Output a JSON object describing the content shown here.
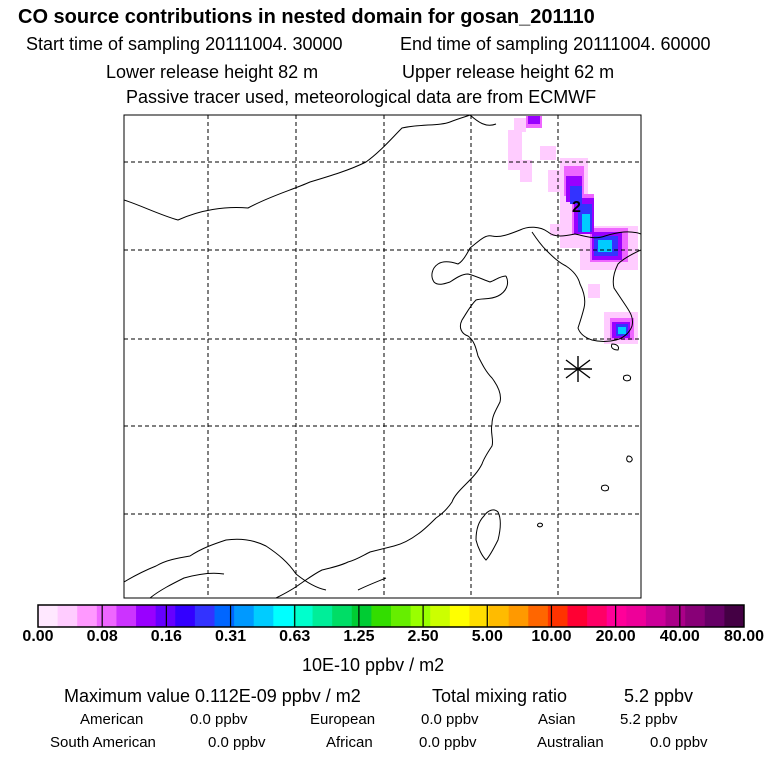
{
  "title": "CO  source contributions in nested domain for gosan_201110",
  "sampling": {
    "start": "Start time of sampling 20111004. 30000",
    "end": "End time of sampling 20111004. 60000"
  },
  "release": {
    "lower": "Lower release height   82 m",
    "upper": "Upper release height   62 m"
  },
  "tracer_note": "Passive tracer used, meteorological data are from ECMWF",
  "map": {
    "contour_label": "2",
    "receptor_marker": "asterisk-marker"
  },
  "colorbar": {
    "unit_label": "10E-10 ppbv / m2",
    "tick_labels": [
      "0.00",
      "0.08",
      "0.16",
      "0.31",
      "0.63",
      "1.25",
      "2.50",
      "5.00",
      "10.00",
      "20.00",
      "40.00",
      "80.00"
    ],
    "colors": [
      "#ffe8ff",
      "#ffccff",
      "#ff99ff",
      "#ee66ff",
      "#cc33ff",
      "#9900ff",
      "#6600ff",
      "#3300ff",
      "#3333ff",
      "#0066ff",
      "#0099ff",
      "#00ccff",
      "#00ffff",
      "#00ffcc",
      "#00ee99",
      "#00dd66",
      "#00cc33",
      "#33dd00",
      "#66ee00",
      "#99ff00",
      "#ccff00",
      "#ffff00",
      "#ffdd00",
      "#ffbb00",
      "#ff9900",
      "#ff6600",
      "#ff3300",
      "#ff0033",
      "#ff0066",
      "#ff0099",
      "#ee0099",
      "#cc0099",
      "#aa0088",
      "#880077",
      "#660066",
      "#440044"
    ]
  },
  "stats": {
    "maximum_label": "Maximum value  0.112E-09 ppbv / m2",
    "total_label": "Total mixing ratio",
    "total_value": "5.2 ppbv",
    "american_label": "American",
    "american_value": "0.0 ppbv",
    "european_label": "European",
    "european_value": "0.0 ppbv",
    "asian_label": "Asian",
    "asian_value": "5.2 ppbv",
    "south_american_label": "South American",
    "south_american_value": "0.0 ppbv",
    "african_label": "African",
    "african_value": "0.0 ppbv",
    "australian_label": "Australian",
    "australian_value": "0.0 ppbv"
  }
}
